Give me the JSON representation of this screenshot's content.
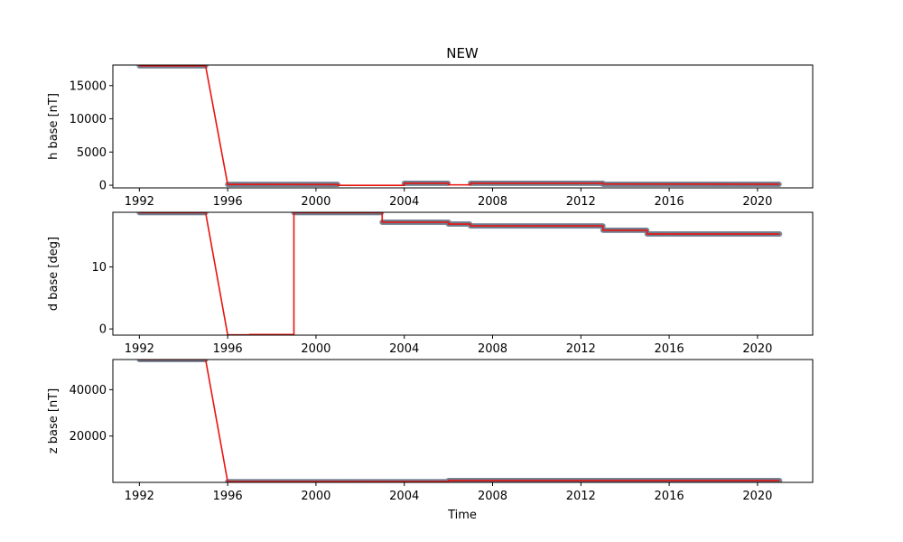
{
  "title": "NEW",
  "xlabel": "Time",
  "colors": {
    "points": "#6f7d8f",
    "line": "#e8140f",
    "frame": "#000000"
  },
  "chart_data": [
    {
      "type": "line",
      "ylabel": "h base [nT]",
      "xlim": [
        1990.8,
        2022.5
      ],
      "ylim": [
        -400,
        18100
      ],
      "xticks": [
        1992,
        1996,
        2000,
        2004,
        2008,
        2012,
        2016,
        2020
      ],
      "yticks": [
        0,
        5000,
        10000,
        15000
      ],
      "ytick_labels": [
        "0",
        "5000",
        "10000",
        "15000"
      ],
      "series": [
        {
          "kind": "baseline-fit",
          "points": [
            [
              1992,
              17980
            ],
            [
              1995,
              17980
            ],
            [
              1996,
              120
            ],
            [
              1998,
              120
            ],
            [
              2001,
              100
            ],
            [
              2001,
              -20
            ],
            [
              2004,
              -20
            ],
            [
              2004,
              300
            ],
            [
              2006,
              300
            ],
            [
              2006,
              60
            ],
            [
              2007,
              60
            ],
            [
              2007,
              300
            ],
            [
              2013,
              300
            ],
            [
              2013,
              180
            ],
            [
              2021,
              150
            ]
          ]
        },
        {
          "kind": "measurements",
          "segments": [
            [
              1992,
              1995,
              17980
            ],
            [
              1996,
              2001,
              120
            ],
            [
              2004,
              2006,
              300
            ],
            [
              2007,
              2013,
              300
            ],
            [
              2013,
              2021,
              150
            ]
          ]
        }
      ]
    },
    {
      "type": "line",
      "ylabel": "d base [deg]",
      "xlim": [
        1990.8,
        2022.5
      ],
      "ylim": [
        -1.0,
        18.8
      ],
      "xticks": [
        1992,
        1996,
        2000,
        2004,
        2008,
        2012,
        2016,
        2020
      ],
      "yticks": [
        0,
        10
      ],
      "ytick_labels": [
        "0",
        "10"
      ],
      "series": [
        {
          "kind": "baseline-fit",
          "points": [
            [
              1992,
              18.75
            ],
            [
              1995,
              18.75
            ],
            [
              1996,
              -0.95
            ],
            [
              1997,
              -0.95
            ],
            [
              1997,
              -0.9
            ],
            [
              1999,
              -0.9
            ],
            [
              1999,
              18.75
            ],
            [
              2003,
              18.75
            ],
            [
              2003,
              17.2
            ],
            [
              2006,
              17.2
            ],
            [
              2006,
              16.9
            ],
            [
              2007,
              16.9
            ],
            [
              2007,
              16.6
            ],
            [
              2013,
              16.6
            ],
            [
              2013,
              15.9
            ],
            [
              2015,
              15.9
            ],
            [
              2015,
              15.3
            ],
            [
              2021,
              15.3
            ]
          ]
        },
        {
          "kind": "measurements",
          "segments": [
            [
              1992,
              1995,
              18.75
            ],
            [
              1999,
              2003,
              18.75
            ],
            [
              2003,
              2006,
              17.2
            ],
            [
              2006,
              2007,
              16.9
            ],
            [
              2007,
              2013,
              16.6
            ],
            [
              2013,
              2015,
              15.9
            ],
            [
              2015,
              2021,
              15.3
            ]
          ]
        }
      ]
    },
    {
      "type": "line",
      "ylabel": "z base [nT]",
      "xlim": [
        1990.8,
        2022.5
      ],
      "ylim": [
        0,
        53000
      ],
      "xticks": [
        1992,
        1996,
        2000,
        2004,
        2008,
        2012,
        2016,
        2020
      ],
      "yticks": [
        20000,
        40000
      ],
      "ytick_labels": [
        "20000",
        "40000"
      ],
      "series": [
        {
          "kind": "baseline-fit",
          "points": [
            [
              1992,
              53000
            ],
            [
              1995,
              53000
            ],
            [
              1996,
              300
            ],
            [
              2006,
              300
            ],
            [
              2006,
              800
            ],
            [
              2021,
              800
            ]
          ]
        },
        {
          "kind": "measurements",
          "segments": [
            [
              1992,
              1995,
              53000
            ],
            [
              1996,
              2006,
              300
            ],
            [
              2006,
              2021,
              800
            ]
          ]
        }
      ]
    }
  ]
}
